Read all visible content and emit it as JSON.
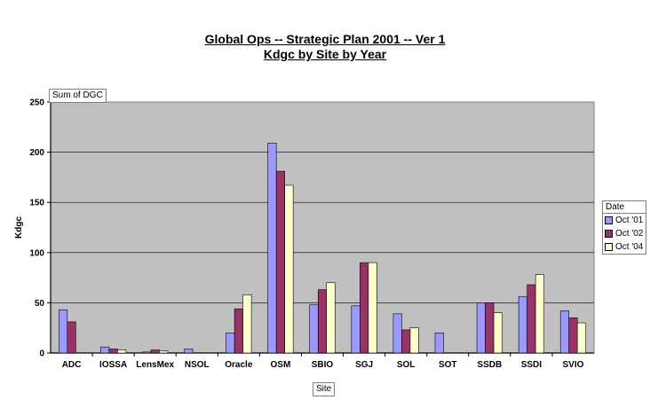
{
  "title_line1": "Global Ops -- Strategic Plan 2001 -- Ver 1",
  "title_line2": "Kdgc by Site by Year",
  "data_field_label": "Sum of DGC",
  "colors": {
    "plot_bg": "#c0c0c0",
    "series": [
      "#9999ff",
      "#993366",
      "#ffffcc"
    ]
  },
  "chart_data": {
    "type": "bar",
    "ylabel": "Kdgc",
    "xlabel": "Site",
    "ylim": [
      0,
      250
    ],
    "yticks": [
      0,
      50,
      100,
      150,
      200,
      250
    ],
    "grid": true,
    "legend_placement": "right",
    "legend_title": "Date",
    "categories": [
      "ADC",
      "IOSSA",
      "LensMex",
      "NSOL",
      "Oracle",
      "OSM",
      "SBIO",
      "SGJ",
      "SOL",
      "SOT",
      "SSDB",
      "SSDI",
      "SVIO"
    ],
    "series": [
      {
        "name": "Oct '01",
        "values": [
          43,
          6,
          1,
          4,
          20,
          209,
          48,
          47,
          39,
          20,
          50,
          56,
          42
        ]
      },
      {
        "name": "Oct '02",
        "values": [
          31,
          4,
          3,
          0,
          44,
          181,
          63,
          90,
          23,
          0,
          50,
          68,
          35
        ]
      },
      {
        "name": "Oct '04",
        "values": [
          0,
          3,
          2,
          0,
          58,
          167,
          70,
          90,
          25,
          0,
          40,
          78,
          30
        ]
      }
    ]
  }
}
